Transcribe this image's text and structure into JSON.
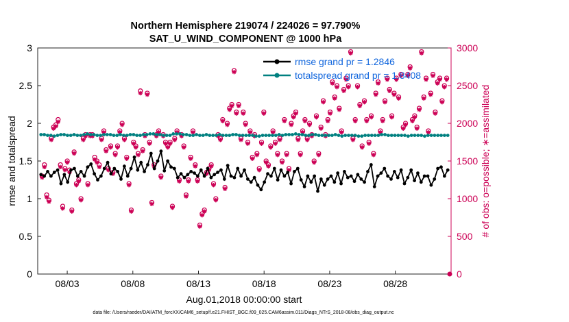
{
  "chart_data": {
    "type": "line",
    "title": "Northern Hemisphere 219074 / 224026 = 97.790%",
    "subtitle": "SAT_U_WIND_COMPONENT @ 1000 hPa",
    "xlabel": "Aug.01,2018 00:00:00 start",
    "ylabel_left": "rmse and totalspread",
    "ylabel_right": "# of obs: o=possible; ∗=assimilated",
    "ylim_left": [
      0,
      3
    ],
    "ylim_right": [
      0,
      3000
    ],
    "xlim": [
      0.75,
      32.25
    ],
    "left_ticks": [
      "0",
      "0.5",
      "1",
      "1.5",
      "2",
      "2.5",
      "3"
    ],
    "right_ticks": [
      "0",
      "500",
      "1000",
      "1500",
      "2000",
      "2500",
      "3000"
    ],
    "x_ticks": [
      {
        "x": 3,
        "label": "08/03"
      },
      {
        "x": 8,
        "label": "08/08"
      },
      {
        "x": 13,
        "label": "08/13"
      },
      {
        "x": 18,
        "label": "08/18"
      },
      {
        "x": 23,
        "label": "08/23"
      },
      {
        "x": 28,
        "label": "08/28"
      }
    ],
    "grid": false,
    "legend_position": "top-right",
    "series": [
      {
        "name": "rmse grand pr = 1.2846",
        "color": "#000000",
        "axis": "left",
        "values": [
          1.32,
          1.3,
          1.36,
          1.3,
          1.35,
          1.38,
          1.2,
          1.32,
          1.22,
          1.38,
          1.4,
          1.3,
          1.36,
          1.3,
          1.42,
          1.46,
          1.33,
          1.25,
          1.3,
          1.4,
          1.48,
          1.33,
          1.4,
          1.36,
          1.26,
          1.43,
          1.3,
          1.4,
          1.55,
          1.38,
          1.48,
          1.36,
          1.45,
          1.6,
          1.4,
          1.5,
          1.63,
          1.37,
          1.5,
          1.42,
          1.4,
          1.28,
          1.33,
          1.28,
          1.32,
          1.36,
          1.34,
          1.3,
          1.38,
          1.3,
          1.4,
          1.28,
          1.32,
          1.35,
          1.38,
          1.26,
          1.44,
          1.3,
          1.28,
          1.4,
          1.3,
          1.38,
          1.26,
          1.22,
          1.28,
          1.18,
          1.12,
          1.22,
          1.33,
          1.3,
          1.4,
          1.25,
          1.38,
          1.3,
          1.35,
          1.2,
          1.36,
          1.4,
          1.25,
          1.16,
          1.3,
          1.22,
          1.3,
          1.1,
          1.26,
          1.18,
          1.26,
          1.3,
          1.22,
          1.34,
          1.2,
          1.36,
          1.28,
          1.3,
          1.23,
          1.32,
          1.26,
          1.22,
          1.36,
          1.45,
          1.16,
          1.3,
          1.34,
          1.4,
          1.3,
          1.26,
          1.36,
          1.28,
          1.38,
          1.2,
          1.28,
          1.38,
          1.24,
          1.34,
          1.22,
          1.3,
          1.3,
          1.18,
          1.26,
          1.4,
          1.42,
          1.3,
          1.38
        ]
      },
      {
        "name": "totalspread grand pr = 1.8408",
        "color": "#008080",
        "axis": "left",
        "values": [
          1.85,
          1.85,
          1.84,
          1.84,
          1.83,
          1.84,
          1.85,
          1.85,
          1.84,
          1.84,
          1.85,
          1.84,
          1.84,
          1.85,
          1.86,
          1.85,
          1.85,
          1.84,
          1.84,
          1.85,
          1.85,
          1.85,
          1.84,
          1.84,
          1.85,
          1.84,
          1.84,
          1.85,
          1.85,
          1.84,
          1.84,
          1.85,
          1.85,
          1.86,
          1.86,
          1.85,
          1.85,
          1.84,
          1.84,
          1.84,
          1.86,
          1.86,
          1.86,
          1.85,
          1.85,
          1.84,
          1.84,
          1.85,
          1.84,
          1.84,
          1.85,
          1.84,
          1.84,
          1.84,
          1.85,
          1.84,
          1.84,
          1.84,
          1.85,
          1.85,
          1.84,
          1.84,
          1.84,
          1.84,
          1.84,
          1.83,
          1.83,
          1.84,
          1.84,
          1.84,
          1.84,
          1.84,
          1.85,
          1.84,
          1.85,
          1.85,
          1.85,
          1.86,
          1.85,
          1.85,
          1.84,
          1.84,
          1.85,
          1.85,
          1.84,
          1.84,
          1.84,
          1.84,
          1.84,
          1.85,
          1.84,
          1.83,
          1.84,
          1.84,
          1.84,
          1.84,
          1.83,
          1.83,
          1.84,
          1.84,
          1.84,
          1.84,
          1.84,
          1.85,
          1.85,
          1.84,
          1.84,
          1.84,
          1.84,
          1.84,
          1.84,
          1.83,
          1.84,
          1.84,
          1.84,
          1.84,
          1.83,
          1.84,
          1.84,
          1.84,
          1.84,
          1.84,
          1.84,
          1.84
        ]
      },
      {
        "name": "possible",
        "color": "#cc0055",
        "axis": "right",
        "marker": "circle",
        "values": [
          1300,
          1450,
          1050,
          980,
          1800,
          1950,
          1980,
          2050,
          1450,
          900,
          1400,
          1500,
          1380,
          850,
          1620,
          1200,
          1250,
          1000,
          1800,
          1850,
          1200,
          1850,
          1850,
          1550,
          1500,
          1450,
          1800,
          1900,
          1650,
          1400,
          1700,
          1350,
          1600,
          1700,
          1900,
          2000,
          1800,
          1550,
          1200,
          850,
          1750,
          1700,
          1600,
          2430,
          1650,
          1850,
          2400,
          1750,
          950,
          1450,
          1850,
          1900,
          1300,
          1850,
          1750,
          1700,
          1750,
          900,
          1800,
          1900,
          1250,
          1850,
          1700,
          1050,
          1250,
          1550,
          1900,
          1450,
          1250,
          650,
          800,
          850,
          1350,
          1400,
          1450,
          1200,
          1000,
          1850,
          1800,
          2050,
          1150,
          2000,
          2200,
          2250,
          2700,
          2150,
          2250,
          1800,
          2150,
          2000,
          1750,
          1900,
          1550,
          1850,
          1600,
          1400,
          1750,
          2150,
          1500,
          1450,
          1700,
          1900,
          1750,
          1600,
          1800,
          1500,
          2050,
          1600,
          1400,
          2000,
          2100,
          2150,
          1800,
          1600,
          1900,
          2050,
          1800,
          2000,
          1850,
          1500,
          2100,
          1600,
          1950,
          2300,
          1850,
          2050,
          2150,
          2550,
          2350,
          2500,
          2200,
          1900,
          2450,
          2600,
          2500,
          2950,
          1800,
          2050,
          2500,
          2250,
          1700,
          2300,
          2050,
          1750,
          2100,
          1600,
          2400,
          2550,
          1900,
          2050,
          2300,
          2600,
          2450,
          2100,
          2400,
          2600,
          2350,
          2650,
          1950,
          2000,
          2650,
          2750,
          2050,
          2100,
          1950,
          2200,
          2950,
          2350,
          2600,
          1900,
          2400,
          2650,
          2150,
          2550,
          2600,
          2300,
          2500,
          2600
        ]
      },
      {
        "name": "assimilated",
        "color": "#cc0055",
        "axis": "right",
        "marker": "star",
        "values": [
          1280,
          1420,
          1020,
          960,
          1780,
          1930,
          1960,
          2020,
          1420,
          870,
          1380,
          1480,
          1350,
          830,
          1600,
          1180,
          1230,
          980,
          1780,
          1830,
          1180,
          1830,
          1830,
          1520,
          1480,
          1420,
          1780,
          1880,
          1630,
          1380,
          1680,
          1330,
          1580,
          1680,
          1880,
          1980,
          1780,
          1530,
          1180,
          830,
          1730,
          1680,
          1580,
          2400,
          1630,
          1830,
          2380,
          1730,
          930,
          1430,
          1830,
          1880,
          1280,
          1830,
          1730,
          1680,
          1730,
          880,
          1780,
          1880,
          1230,
          1830,
          1680,
          1030,
          1230,
          1530,
          1880,
          1430,
          1230,
          630,
          780,
          830,
          1330,
          1380,
          1430,
          1180,
          980,
          1830,
          1780,
          2030,
          1130,
          1980,
          2180,
          2230,
          2680,
          2130,
          2230,
          1780,
          2130,
          1980,
          1730,
          1880,
          1530,
          1830,
          1580,
          1380,
          1730,
          2130,
          1480,
          1430,
          1680,
          1880,
          1730,
          1580,
          1780,
          1480,
          2030,
          1580,
          1380,
          1980,
          2080,
          2130,
          1780,
          1580,
          1880,
          2030,
          1780,
          1980,
          1830,
          1480,
          2080,
          1580,
          1930,
          2280,
          1830,
          2030,
          2130,
          2530,
          2330,
          2480,
          2180,
          1880,
          2430,
          2580,
          2480,
          2930,
          1780,
          2030,
          2480,
          2230,
          1680,
          2280,
          2030,
          1730,
          2080,
          1580,
          2380,
          2530,
          1880,
          2030,
          2280,
          2580,
          2430,
          2080,
          2380,
          2580,
          2330,
          2630,
          1930,
          1980,
          2630,
          2730,
          2030,
          2080,
          1930,
          2180,
          2930,
          2330,
          2580,
          1880,
          2380,
          2630,
          2130,
          2530,
          2580,
          2280,
          2480,
          2580
        ]
      }
    ],
    "footer": "data file: /Users/raeder/DAI/ATM_forcXX/CAM6_setup/f.e21.FHIST_BGC.f09_025.CAM6assim.011/Diags_NTrS_2018-08/obs_diag_output.nc"
  }
}
